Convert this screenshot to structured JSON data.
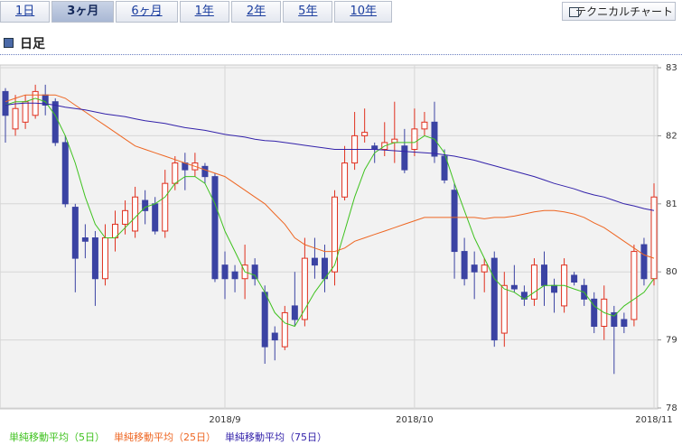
{
  "tabs": [
    "1日",
    "3ヶ月",
    "6ヶ月",
    "1年",
    "2年",
    "5年",
    "10年"
  ],
  "selected_tab": 1,
  "button": "テクニカルチャート",
  "header": "日足",
  "chart_data": {
    "type": "candlestick",
    "categories": [
      null,
      null,
      null,
      null,
      null,
      null,
      null,
      null,
      null,
      null,
      null,
      null,
      null,
      null,
      null,
      null,
      null,
      null,
      null,
      null,
      null,
      null,
      "2018/9",
      null,
      null,
      null,
      null,
      null,
      null,
      null,
      null,
      null,
      null,
      null,
      null,
      null,
      null,
      null,
      null,
      null,
      null,
      "2018/10",
      null,
      null,
      null,
      null,
      null,
      null,
      null,
      null,
      null,
      null,
      null,
      null,
      null,
      null,
      null,
      null,
      null,
      null,
      null,
      null,
      null,
      null,
      null,
      "2018/11"
    ],
    "open": [
      82.65,
      82.1,
      82.2,
      82.3,
      82.6,
      82.5,
      81.9,
      80.95,
      80.5,
      80.5,
      79.9,
      80.5,
      80.7,
      80.6,
      81.05,
      81.0,
      80.6,
      81.3,
      81.6,
      81.5,
      81.55,
      81.4,
      80.1,
      80.0,
      79.9,
      80.1,
      79.7,
      79.1,
      78.9,
      79.5,
      79.3,
      80.2,
      80.2,
      80.0,
      81.1,
      81.6,
      82.0,
      81.85,
      81.8,
      81.9,
      81.85,
      81.8,
      82.1,
      82.2,
      81.7,
      81.2,
      80.3,
      80.1,
      80.0,
      80.2,
      79.1,
      79.8,
      79.7,
      79.6,
      80.1,
      79.8,
      79.5,
      79.95,
      79.8,
      79.6,
      79.2,
      79.4,
      79.3,
      79.3,
      80.4,
      79.9
    ],
    "high": [
      82.7,
      82.6,
      82.6,
      82.75,
      82.75,
      82.55,
      82.0,
      81.0,
      80.7,
      80.6,
      80.7,
      80.9,
      81.05,
      81.25,
      81.2,
      81.1,
      81.5,
      81.7,
      81.75,
      81.75,
      81.6,
      81.45,
      80.3,
      80.1,
      80.4,
      80.2,
      79.8,
      79.2,
      79.5,
      80.0,
      80.5,
      80.5,
      80.4,
      81.2,
      81.85,
      82.35,
      82.4,
      81.9,
      82.2,
      82.5,
      82.1,
      82.4,
      82.35,
      82.5,
      81.8,
      81.3,
      80.5,
      80.3,
      80.2,
      80.3,
      80.0,
      80.1,
      79.8,
      80.2,
      80.3,
      79.9,
      80.2,
      80.0,
      79.9,
      79.7,
      79.8,
      79.5,
      79.4,
      80.4,
      80.5,
      81.3
    ],
    "low": [
      81.9,
      82.0,
      82.1,
      82.25,
      82.3,
      81.85,
      80.95,
      79.7,
      80.2,
      79.5,
      79.8,
      80.3,
      80.55,
      80.5,
      80.7,
      80.55,
      80.5,
      81.2,
      81.2,
      81.4,
      81.3,
      79.85,
      79.6,
      79.7,
      79.6,
      79.8,
      78.65,
      78.7,
      78.85,
      79.2,
      79.2,
      79.9,
      79.7,
      79.8,
      81.05,
      81.5,
      81.9,
      81.6,
      81.7,
      81.6,
      81.45,
      81.7,
      82.0,
      81.6,
      81.3,
      79.9,
      79.8,
      79.6,
      79.7,
      78.9,
      78.9,
      79.7,
      79.5,
      79.5,
      79.5,
      79.4,
      79.4,
      79.8,
      79.5,
      79.1,
      79.0,
      78.5,
      79.1,
      79.2,
      79.8,
      79.8
    ],
    "close": [
      82.3,
      82.4,
      82.5,
      82.65,
      82.45,
      81.9,
      81.0,
      80.2,
      80.45,
      79.9,
      80.5,
      80.7,
      80.9,
      81.1,
      80.9,
      80.6,
      81.3,
      81.6,
      81.5,
      81.6,
      81.4,
      79.9,
      79.9,
      79.9,
      80.1,
      79.9,
      78.9,
      79.0,
      79.4,
      79.3,
      80.2,
      80.1,
      79.9,
      81.1,
      81.6,
      82.0,
      82.05,
      81.8,
      81.9,
      81.95,
      81.5,
      82.1,
      82.2,
      81.7,
      81.35,
      80.3,
      79.9,
      80.0,
      80.1,
      79.0,
      79.8,
      79.75,
      79.6,
      80.1,
      79.8,
      79.7,
      80.1,
      79.85,
      79.6,
      79.2,
      79.6,
      79.2,
      79.2,
      80.3,
      79.9,
      81.1
    ],
    "up_color": "#e0301e",
    "down_color": "#3b43a3",
    "series": [
      {
        "name": "単純移動平均（5日）",
        "color": "#3fc21f",
        "values": [
          82.45,
          82.5,
          82.5,
          82.55,
          82.5,
          82.3,
          82.0,
          81.6,
          81.1,
          80.7,
          80.5,
          80.5,
          80.65,
          80.8,
          80.95,
          81.0,
          81.1,
          81.3,
          81.4,
          81.4,
          81.3,
          81.0,
          80.6,
          80.3,
          80.0,
          79.95,
          79.7,
          79.4,
          79.25,
          79.2,
          79.45,
          79.7,
          79.9,
          80.1,
          80.6,
          81.1,
          81.5,
          81.75,
          81.85,
          81.9,
          81.9,
          81.9,
          82.0,
          81.95,
          81.75,
          81.3,
          80.9,
          80.5,
          80.2,
          79.9,
          79.75,
          79.7,
          79.6,
          79.7,
          79.8,
          79.8,
          79.8,
          79.75,
          79.7,
          79.5,
          79.4,
          79.35,
          79.5,
          79.6,
          79.7,
          79.9
        ]
      },
      {
        "name": "単純移動平均（25日）",
        "color": "#ee6622",
        "values": [
          82.5,
          82.55,
          82.6,
          82.6,
          82.6,
          82.6,
          82.55,
          82.45,
          82.35,
          82.25,
          82.15,
          82.05,
          81.95,
          81.85,
          81.8,
          81.75,
          81.7,
          81.65,
          81.6,
          81.55,
          81.5,
          81.45,
          81.4,
          81.3,
          81.2,
          81.1,
          81.0,
          80.85,
          80.7,
          80.5,
          80.4,
          80.35,
          80.3,
          80.3,
          80.35,
          80.45,
          80.5,
          80.55,
          80.6,
          80.65,
          80.7,
          80.75,
          80.8,
          80.8,
          80.8,
          80.8,
          80.8,
          80.8,
          80.78,
          80.8,
          80.8,
          80.82,
          80.85,
          80.88,
          80.9,
          80.9,
          80.88,
          80.85,
          80.8,
          80.72,
          80.65,
          80.55,
          80.45,
          80.35,
          80.25,
          80.2
        ]
      },
      {
        "name": "単純移動平均（75日）",
        "color": "#3322aa",
        "values": [
          82.45,
          82.47,
          82.48,
          82.48,
          82.47,
          82.45,
          82.42,
          82.4,
          82.38,
          82.35,
          82.32,
          82.3,
          82.28,
          82.25,
          82.22,
          82.2,
          82.18,
          82.15,
          82.12,
          82.1,
          82.08,
          82.05,
          82.02,
          82.0,
          81.98,
          81.95,
          81.93,
          81.92,
          81.9,
          81.88,
          81.86,
          81.84,
          81.82,
          81.8,
          81.8,
          81.8,
          81.8,
          81.8,
          81.79,
          81.78,
          81.77,
          81.76,
          81.75,
          81.74,
          81.72,
          81.7,
          81.67,
          81.64,
          81.6,
          81.56,
          81.52,
          81.48,
          81.44,
          81.4,
          81.35,
          81.3,
          81.26,
          81.22,
          81.17,
          81.13,
          81.1,
          81.05,
          81.0,
          80.97,
          80.93,
          80.9
        ]
      }
    ],
    "ylim": [
      78,
      83
    ],
    "yticks": [
      78,
      79,
      80,
      81,
      82,
      83
    ],
    "grid": true
  }
}
